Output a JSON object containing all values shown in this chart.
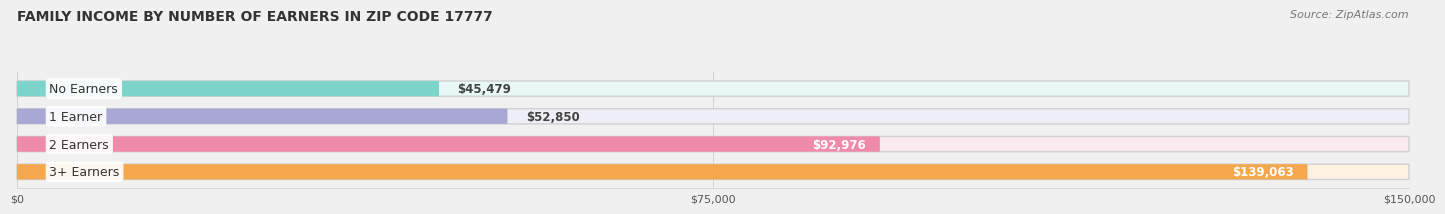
{
  "title": "FAMILY INCOME BY NUMBER OF EARNERS IN ZIP CODE 17777",
  "source": "Source: ZipAtlas.com",
  "categories": [
    "No Earners",
    "1 Earner",
    "2 Earners",
    "3+ Earners"
  ],
  "values": [
    45479,
    52850,
    92976,
    139063
  ],
  "bar_colors": [
    "#7dd4ca",
    "#a9a8d4",
    "#f08aaa",
    "#f5a74e"
  ],
  "bg_colors": [
    "#e8f8f7",
    "#eeeef7",
    "#fce8ef",
    "#fdf1e2"
  ],
  "xlim": [
    0,
    150000
  ],
  "xticks": [
    0,
    75000,
    150000
  ],
  "xtick_labels": [
    "$0",
    "$75,000",
    "$150,000"
  ],
  "bar_height": 0.55,
  "title_fontsize": 10,
  "label_fontsize": 9,
  "value_fontsize": 8.5,
  "source_fontsize": 8,
  "background_color": "#f0f0f0"
}
